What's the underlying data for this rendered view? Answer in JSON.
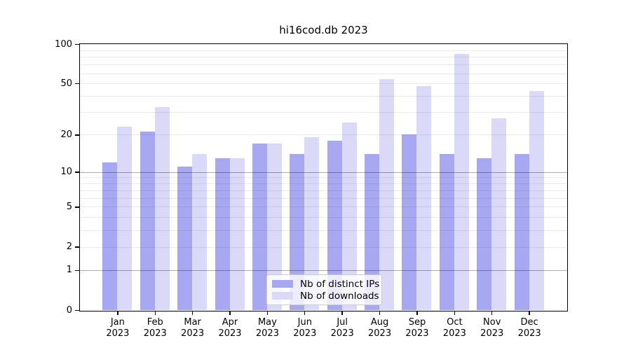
{
  "chart_data": {
    "type": "bar",
    "title": "hi16cod.db 2023",
    "categories": [
      "Jan",
      "Feb",
      "Mar",
      "Apr",
      "May",
      "Jun",
      "Jul",
      "Aug",
      "Sep",
      "Oct",
      "Nov",
      "Dec"
    ],
    "year_label": "2023",
    "series": [
      {
        "name": "Nb of distinct IPs",
        "color": "#a7a7f2",
        "values": [
          12,
          21,
          11,
          13,
          17,
          14,
          18,
          14,
          20,
          14,
          13,
          14
        ]
      },
      {
        "name": "Nb of downloads",
        "color": "#dadaf8",
        "values": [
          23,
          33,
          14,
          13,
          17,
          19,
          25,
          54,
          48,
          84,
          27,
          44
        ]
      }
    ],
    "yscale": "log(1+v)",
    "ylim": [
      0,
      100
    ],
    "yticks": [
      100,
      50,
      20,
      10,
      5,
      2,
      1,
      0
    ],
    "grid": {
      "minor": [
        2,
        3,
        4,
        5,
        6,
        7,
        8,
        9,
        20,
        30,
        40,
        50,
        60,
        70,
        80,
        90
      ],
      "major": [
        1,
        10
      ]
    },
    "legend_position": "lower center",
    "xlabel": "",
    "ylabel": ""
  },
  "colors": {
    "grid_minor": "#ebebeb",
    "grid_major": "#aaaaaa",
    "axis": "#000000",
    "legend_border": "#cccccc"
  }
}
